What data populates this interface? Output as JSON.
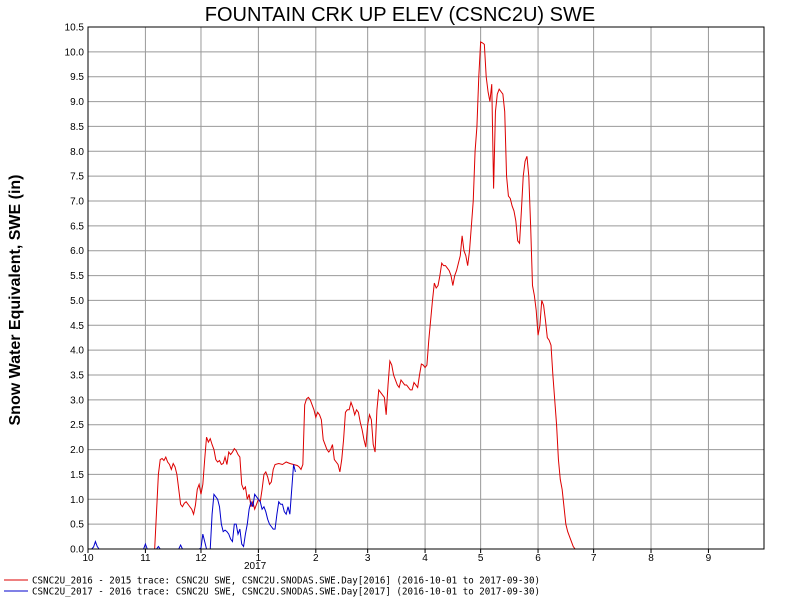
{
  "chart_data": {
    "type": "line",
    "title": "FOUNTAIN CRK UP ELEV (CSNC2U) SWE",
    "ylabel": "Snow Water Equivalent, SWE (in)",
    "xlabel": "",
    "ylim": [
      0.0,
      10.5
    ],
    "yticks": [
      "0.0",
      "0.5",
      "1.0",
      "1.5",
      "2.0",
      "2.5",
      "3.0",
      "3.5",
      "4.0",
      "4.5",
      "5.0",
      "5.5",
      "6.0",
      "6.5",
      "7.0",
      "7.5",
      "8.0",
      "8.5",
      "9.0",
      "9.5",
      "10.0",
      "10.5"
    ],
    "xticks": [
      "10",
      "11",
      "12",
      "1",
      "2",
      "3",
      "4",
      "5",
      "6",
      "7",
      "8",
      "9"
    ],
    "year_label": "2017",
    "grid": true,
    "legend_position": "bottom",
    "colors": {
      "series_2016": "#dd0000",
      "series_2017": "#0000cc",
      "grid": "#999999"
    },
    "series": [
      {
        "name": "CSNC2U_2016 - 2015 trace: CSNC2U SWE, CSNC2U.SNODAS.SWE.Day[2016] (2016-10-01 to 2017-09-30)",
        "points": [
          [
            0,
            0
          ],
          [
            36,
            0
          ],
          [
            38,
            1.5
          ],
          [
            39,
            1.8
          ],
          [
            40,
            1.82
          ],
          [
            41,
            1.78
          ],
          [
            42,
            1.85
          ],
          [
            43,
            1.75
          ],
          [
            44,
            1.7
          ],
          [
            45,
            1.6
          ],
          [
            46,
            1.72
          ],
          [
            47,
            1.65
          ],
          [
            48,
            1.5
          ],
          [
            49,
            1.2
          ],
          [
            50,
            0.9
          ],
          [
            51,
            0.85
          ],
          [
            52,
            0.92
          ],
          [
            53,
            0.95
          ],
          [
            54,
            0.9
          ],
          [
            55,
            0.85
          ],
          [
            56,
            0.8
          ],
          [
            57,
            0.7
          ],
          [
            58,
            0.88
          ],
          [
            59,
            1.2
          ],
          [
            60,
            1.3
          ],
          [
            61,
            1.1
          ],
          [
            62,
            1.3
          ],
          [
            63,
            1.8
          ],
          [
            64,
            2.25
          ],
          [
            65,
            2.15
          ],
          [
            66,
            2.22
          ],
          [
            67,
            2.1
          ],
          [
            68,
            2.0
          ],
          [
            69,
            1.8
          ],
          [
            70,
            1.75
          ],
          [
            71,
            1.78
          ],
          [
            72,
            1.7
          ],
          [
            73,
            1.72
          ],
          [
            74,
            1.85
          ],
          [
            75,
            1.7
          ],
          [
            76,
            1.95
          ],
          [
            77,
            1.9
          ],
          [
            78,
            1.95
          ],
          [
            79,
            2.02
          ],
          [
            80,
            1.98
          ],
          [
            81,
            1.9
          ],
          [
            82,
            1.85
          ],
          [
            83,
            1.3
          ],
          [
            84,
            1.2
          ],
          [
            85,
            1.25
          ],
          [
            86,
            1.0
          ],
          [
            87,
            1.1
          ],
          [
            88,
            0.85
          ],
          [
            89,
            0.95
          ],
          [
            90,
            0.8
          ],
          [
            91,
            0.9
          ],
          [
            92,
            1.0
          ],
          [
            93,
            0.95
          ],
          [
            94,
            1.2
          ],
          [
            95,
            1.5
          ],
          [
            96,
            1.55
          ],
          [
            97,
            1.45
          ],
          [
            98,
            1.3
          ],
          [
            99,
            1.35
          ],
          [
            100,
            1.6
          ],
          [
            101,
            1.7
          ],
          [
            103,
            1.72
          ],
          [
            105,
            1.7
          ],
          [
            107,
            1.75
          ],
          [
            109,
            1.72
          ],
          [
            111,
            1.7
          ],
          [
            113,
            1.68
          ],
          [
            114,
            1.65
          ],
          [
            115,
            1.6
          ],
          [
            116,
            1.7
          ],
          [
            117,
            2.9
          ],
          [
            118,
            3.02
          ],
          [
            119,
            3.05
          ],
          [
            120,
            3.0
          ],
          [
            121,
            2.9
          ],
          [
            122,
            2.8
          ],
          [
            123,
            2.65
          ],
          [
            124,
            2.75
          ],
          [
            125,
            2.7
          ],
          [
            126,
            2.6
          ],
          [
            127,
            2.2
          ],
          [
            128,
            2.1
          ],
          [
            129,
            2.0
          ],
          [
            130,
            1.95
          ],
          [
            131,
            2.0
          ],
          [
            132,
            2.1
          ],
          [
            133,
            1.8
          ],
          [
            134,
            1.75
          ],
          [
            135,
            1.7
          ],
          [
            136,
            1.55
          ],
          [
            137,
            1.8
          ],
          [
            138,
            2.2
          ],
          [
            139,
            2.75
          ],
          [
            140,
            2.8
          ],
          [
            141,
            2.8
          ],
          [
            142,
            2.95
          ],
          [
            143,
            2.85
          ],
          [
            144,
            2.7
          ],
          [
            145,
            2.8
          ],
          [
            146,
            2.75
          ],
          [
            147,
            2.55
          ],
          [
            148,
            2.4
          ],
          [
            149,
            2.2
          ],
          [
            150,
            2.05
          ],
          [
            151,
            2.5
          ],
          [
            152,
            2.7
          ],
          [
            153,
            2.6
          ],
          [
            154,
            2.1
          ],
          [
            155,
            1.95
          ],
          [
            156,
            2.8
          ],
          [
            157,
            3.2
          ],
          [
            158,
            3.15
          ],
          [
            159,
            3.1
          ],
          [
            160,
            3.05
          ],
          [
            161,
            2.7
          ],
          [
            162,
            3.3
          ],
          [
            163,
            3.78
          ],
          [
            164,
            3.7
          ],
          [
            165,
            3.5
          ],
          [
            166,
            3.4
          ],
          [
            167,
            3.3
          ],
          [
            168,
            3.25
          ],
          [
            169,
            3.4
          ],
          [
            170,
            3.35
          ],
          [
            171,
            3.3
          ],
          [
            172,
            3.3
          ],
          [
            173,
            3.25
          ],
          [
            174,
            3.2
          ],
          [
            175,
            3.2
          ],
          [
            176,
            3.35
          ],
          [
            177,
            3.3
          ],
          [
            178,
            3.25
          ],
          [
            179,
            3.5
          ],
          [
            180,
            3.72
          ],
          [
            181,
            3.7
          ],
          [
            182,
            3.65
          ],
          [
            183,
            3.7
          ],
          [
            184,
            4.2
          ],
          [
            185,
            4.6
          ],
          [
            186,
            5.0
          ],
          [
            187,
            5.35
          ],
          [
            188,
            5.25
          ],
          [
            189,
            5.3
          ],
          [
            190,
            5.5
          ],
          [
            191,
            5.75
          ],
          [
            192,
            5.7
          ],
          [
            193,
            5.7
          ],
          [
            194,
            5.65
          ],
          [
            195,
            5.6
          ],
          [
            196,
            5.5
          ],
          [
            197,
            5.3
          ],
          [
            198,
            5.5
          ],
          [
            199,
            5.6
          ],
          [
            200,
            5.75
          ],
          [
            201,
            5.9
          ],
          [
            202,
            6.3
          ],
          [
            203,
            6.0
          ],
          [
            204,
            5.9
          ],
          [
            205,
            5.7
          ],
          [
            206,
            6.0
          ],
          [
            207,
            6.5
          ],
          [
            208,
            7.0
          ],
          [
            209,
            8.0
          ],
          [
            210,
            8.5
          ],
          [
            211,
            9.5
          ],
          [
            212,
            10.2
          ],
          [
            213,
            10.18
          ],
          [
            214,
            10.15
          ],
          [
            215,
            9.5
          ],
          [
            216,
            9.2
          ],
          [
            217,
            9.0
          ],
          [
            218,
            9.35
          ],
          [
            219,
            7.25
          ],
          [
            220,
            8.8
          ],
          [
            221,
            9.15
          ],
          [
            222,
            9.25
          ],
          [
            223,
            9.2
          ],
          [
            224,
            9.15
          ],
          [
            225,
            8.8
          ],
          [
            226,
            7.5
          ],
          [
            227,
            7.1
          ],
          [
            228,
            7.05
          ],
          [
            229,
            6.9
          ],
          [
            230,
            6.8
          ],
          [
            231,
            6.6
          ],
          [
            232,
            6.2
          ],
          [
            233,
            6.15
          ],
          [
            234,
            6.8
          ],
          [
            235,
            7.5
          ],
          [
            236,
            7.8
          ],
          [
            237,
            7.9
          ],
          [
            238,
            7.5
          ],
          [
            239,
            6.5
          ],
          [
            240,
            5.3
          ],
          [
            241,
            5.1
          ],
          [
            242,
            4.8
          ],
          [
            243,
            4.3
          ],
          [
            244,
            4.5
          ],
          [
            245,
            5.0
          ],
          [
            246,
            4.9
          ],
          [
            247,
            4.6
          ],
          [
            248,
            4.25
          ],
          [
            249,
            4.2
          ],
          [
            250,
            4.1
          ],
          [
            251,
            3.5
          ],
          [
            252,
            3.0
          ],
          [
            253,
            2.5
          ],
          [
            254,
            1.8
          ],
          [
            255,
            1.4
          ],
          [
            256,
            1.2
          ],
          [
            257,
            0.85
          ],
          [
            258,
            0.5
          ],
          [
            259,
            0.35
          ],
          [
            260,
            0.25
          ],
          [
            261,
            0.15
          ],
          [
            262,
            0.05
          ],
          [
            263,
            0
          ],
          [
            365,
            0
          ]
        ]
      },
      {
        "name": "CSNC2U_2017 - 2016 trace: CSNC2U SWE, CSNC2U.SNODAS.SWE.Day[2017] (2016-10-01 to 2017-09-30)",
        "points": [
          [
            0,
            0
          ],
          [
            1,
            0
          ],
          [
            2,
            0
          ],
          [
            3,
            0.04
          ],
          [
            4,
            0.15
          ],
          [
            5,
            0.05
          ],
          [
            6,
            0
          ],
          [
            30,
            0
          ],
          [
            31,
            0.1
          ],
          [
            32,
            0
          ],
          [
            37,
            0
          ],
          [
            38,
            0.05
          ],
          [
            39,
            0
          ],
          [
            49,
            0
          ],
          [
            50,
            0.08
          ],
          [
            51,
            0
          ],
          [
            60,
            0
          ],
          [
            61,
            0.02
          ],
          [
            62,
            0.3
          ],
          [
            63,
            0.15
          ],
          [
            64,
            0
          ],
          [
            66,
            0
          ],
          [
            67,
            0.7
          ],
          [
            68,
            1.1
          ],
          [
            69,
            1.05
          ],
          [
            70,
            1.0
          ],
          [
            71,
            0.85
          ],
          [
            72,
            0.5
          ],
          [
            73,
            0.35
          ],
          [
            74,
            0.38
          ],
          [
            75,
            0.35
          ],
          [
            76,
            0.3
          ],
          [
            77,
            0.2
          ],
          [
            78,
            0.15
          ],
          [
            79,
            0.5
          ],
          [
            80,
            0.5
          ],
          [
            81,
            0.3
          ],
          [
            82,
            0.4
          ],
          [
            83,
            0.1
          ],
          [
            84,
            0.05
          ],
          [
            85,
            0.3
          ],
          [
            86,
            0.5
          ],
          [
            87,
            0.8
          ],
          [
            88,
            0.95
          ],
          [
            89,
            0.85
          ],
          [
            90,
            1.1
          ],
          [
            91,
            1.05
          ],
          [
            92,
            1.0
          ],
          [
            93,
            0.95
          ],
          [
            94,
            0.8
          ],
          [
            95,
            0.85
          ],
          [
            96,
            0.75
          ],
          [
            97,
            0.6
          ],
          [
            98,
            0.5
          ],
          [
            99,
            0.45
          ],
          [
            100,
            0.4
          ],
          [
            101,
            0.4
          ],
          [
            102,
            0.7
          ],
          [
            103,
            0.95
          ],
          [
            104,
            0.9
          ],
          [
            105,
            0.9
          ],
          [
            106,
            0.75
          ],
          [
            107,
            0.7
          ],
          [
            108,
            0.85
          ],
          [
            109,
            0.7
          ],
          [
            110,
            1.2
          ],
          [
            111,
            1.7
          ],
          [
            112,
            1.55
          ]
        ]
      }
    ]
  }
}
